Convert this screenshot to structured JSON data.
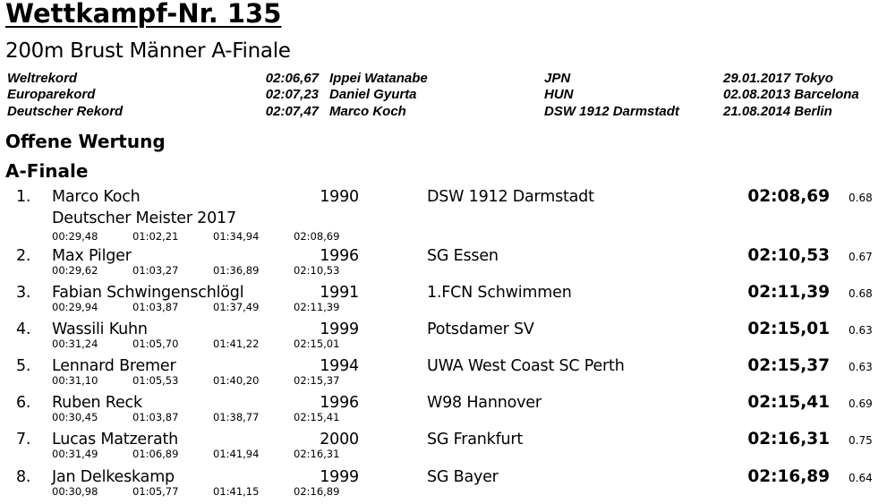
{
  "header": {
    "title": "Wettkampf-Nr. 135",
    "subtitle": "200m Brust Männer A-Finale"
  },
  "records": [
    {
      "label": "Weltrekord",
      "time": "02:06,67",
      "holder": "Ippei Watanabe",
      "nation": "JPN",
      "date_place": "29.01.2017 Tokyo"
    },
    {
      "label": "Europarekord",
      "time": "02:07,23",
      "holder": "Daniel Gyurta",
      "nation": "HUN",
      "date_place": "02.08.2013 Barcelona"
    },
    {
      "label": "Deutscher Rekord",
      "time": "02:07,47",
      "holder": "Marco Koch",
      "nation": "DSW 1912 Darmstadt",
      "date_place": "21.08.2014 Berlin"
    }
  ],
  "section": "Offene Wertung",
  "subsection": "A-Finale",
  "results": [
    {
      "rank": "1.",
      "name": "Marco Koch",
      "year": "1990",
      "club": "DSW 1912 Darmstadt",
      "time": "02:08,69",
      "reaction": "0.68",
      "note": "Deutscher Meister 2017",
      "splits": [
        "00:29,48",
        "01:02,21",
        "01:34,94",
        "02:08,69"
      ]
    },
    {
      "rank": "2.",
      "name": "Max Pilger",
      "year": "1996",
      "club": "SG Essen",
      "time": "02:10,53",
      "reaction": "0.67",
      "splits": [
        "00:29,62",
        "01:03,27",
        "01:36,89",
        "02:10,53"
      ]
    },
    {
      "rank": "3.",
      "name": "Fabian Schwingenschlögl",
      "year": "1991",
      "club": "1.FCN Schwimmen",
      "time": "02:11,39",
      "reaction": "0.68",
      "splits": [
        "00:29,94",
        "01:03,87",
        "01:37,49",
        "02:11,39"
      ]
    },
    {
      "rank": "4.",
      "name": "Wassili Kuhn",
      "year": "1999",
      "club": "Potsdamer SV",
      "time": "02:15,01",
      "reaction": "0.63",
      "splits": [
        "00:31,24",
        "01:05,70",
        "01:41,22",
        "02:15,01"
      ]
    },
    {
      "rank": "5.",
      "name": "Lennard Bremer",
      "year": "1994",
      "club": "UWA West Coast SC Perth",
      "time": "02:15,37",
      "reaction": "0.63",
      "splits": [
        "00:31,10",
        "01:05,53",
        "01:40,20",
        "02:15,37"
      ]
    },
    {
      "rank": "6.",
      "name": "Ruben Reck",
      "year": "1996",
      "club": "W98 Hannover",
      "time": "02:15,41",
      "reaction": "0.69",
      "splits": [
        "00:30,45",
        "01:03,87",
        "01:38,77",
        "02:15,41"
      ]
    },
    {
      "rank": "7.",
      "name": "Lucas Matzerath",
      "year": "2000",
      "club": "SG Frankfurt",
      "time": "02:16,31",
      "reaction": "0.75",
      "splits": [
        "00:31,49",
        "01:06,89",
        "01:41,94",
        "02:16,31"
      ]
    },
    {
      "rank": "8.",
      "name": "Jan Delkeskamp",
      "year": "1999",
      "club": "SG Bayer",
      "time": "02:16,89",
      "reaction": "0.64",
      "splits": [
        "00:30,98",
        "01:05,77",
        "01:41,15",
        "02:16,89"
      ]
    }
  ]
}
